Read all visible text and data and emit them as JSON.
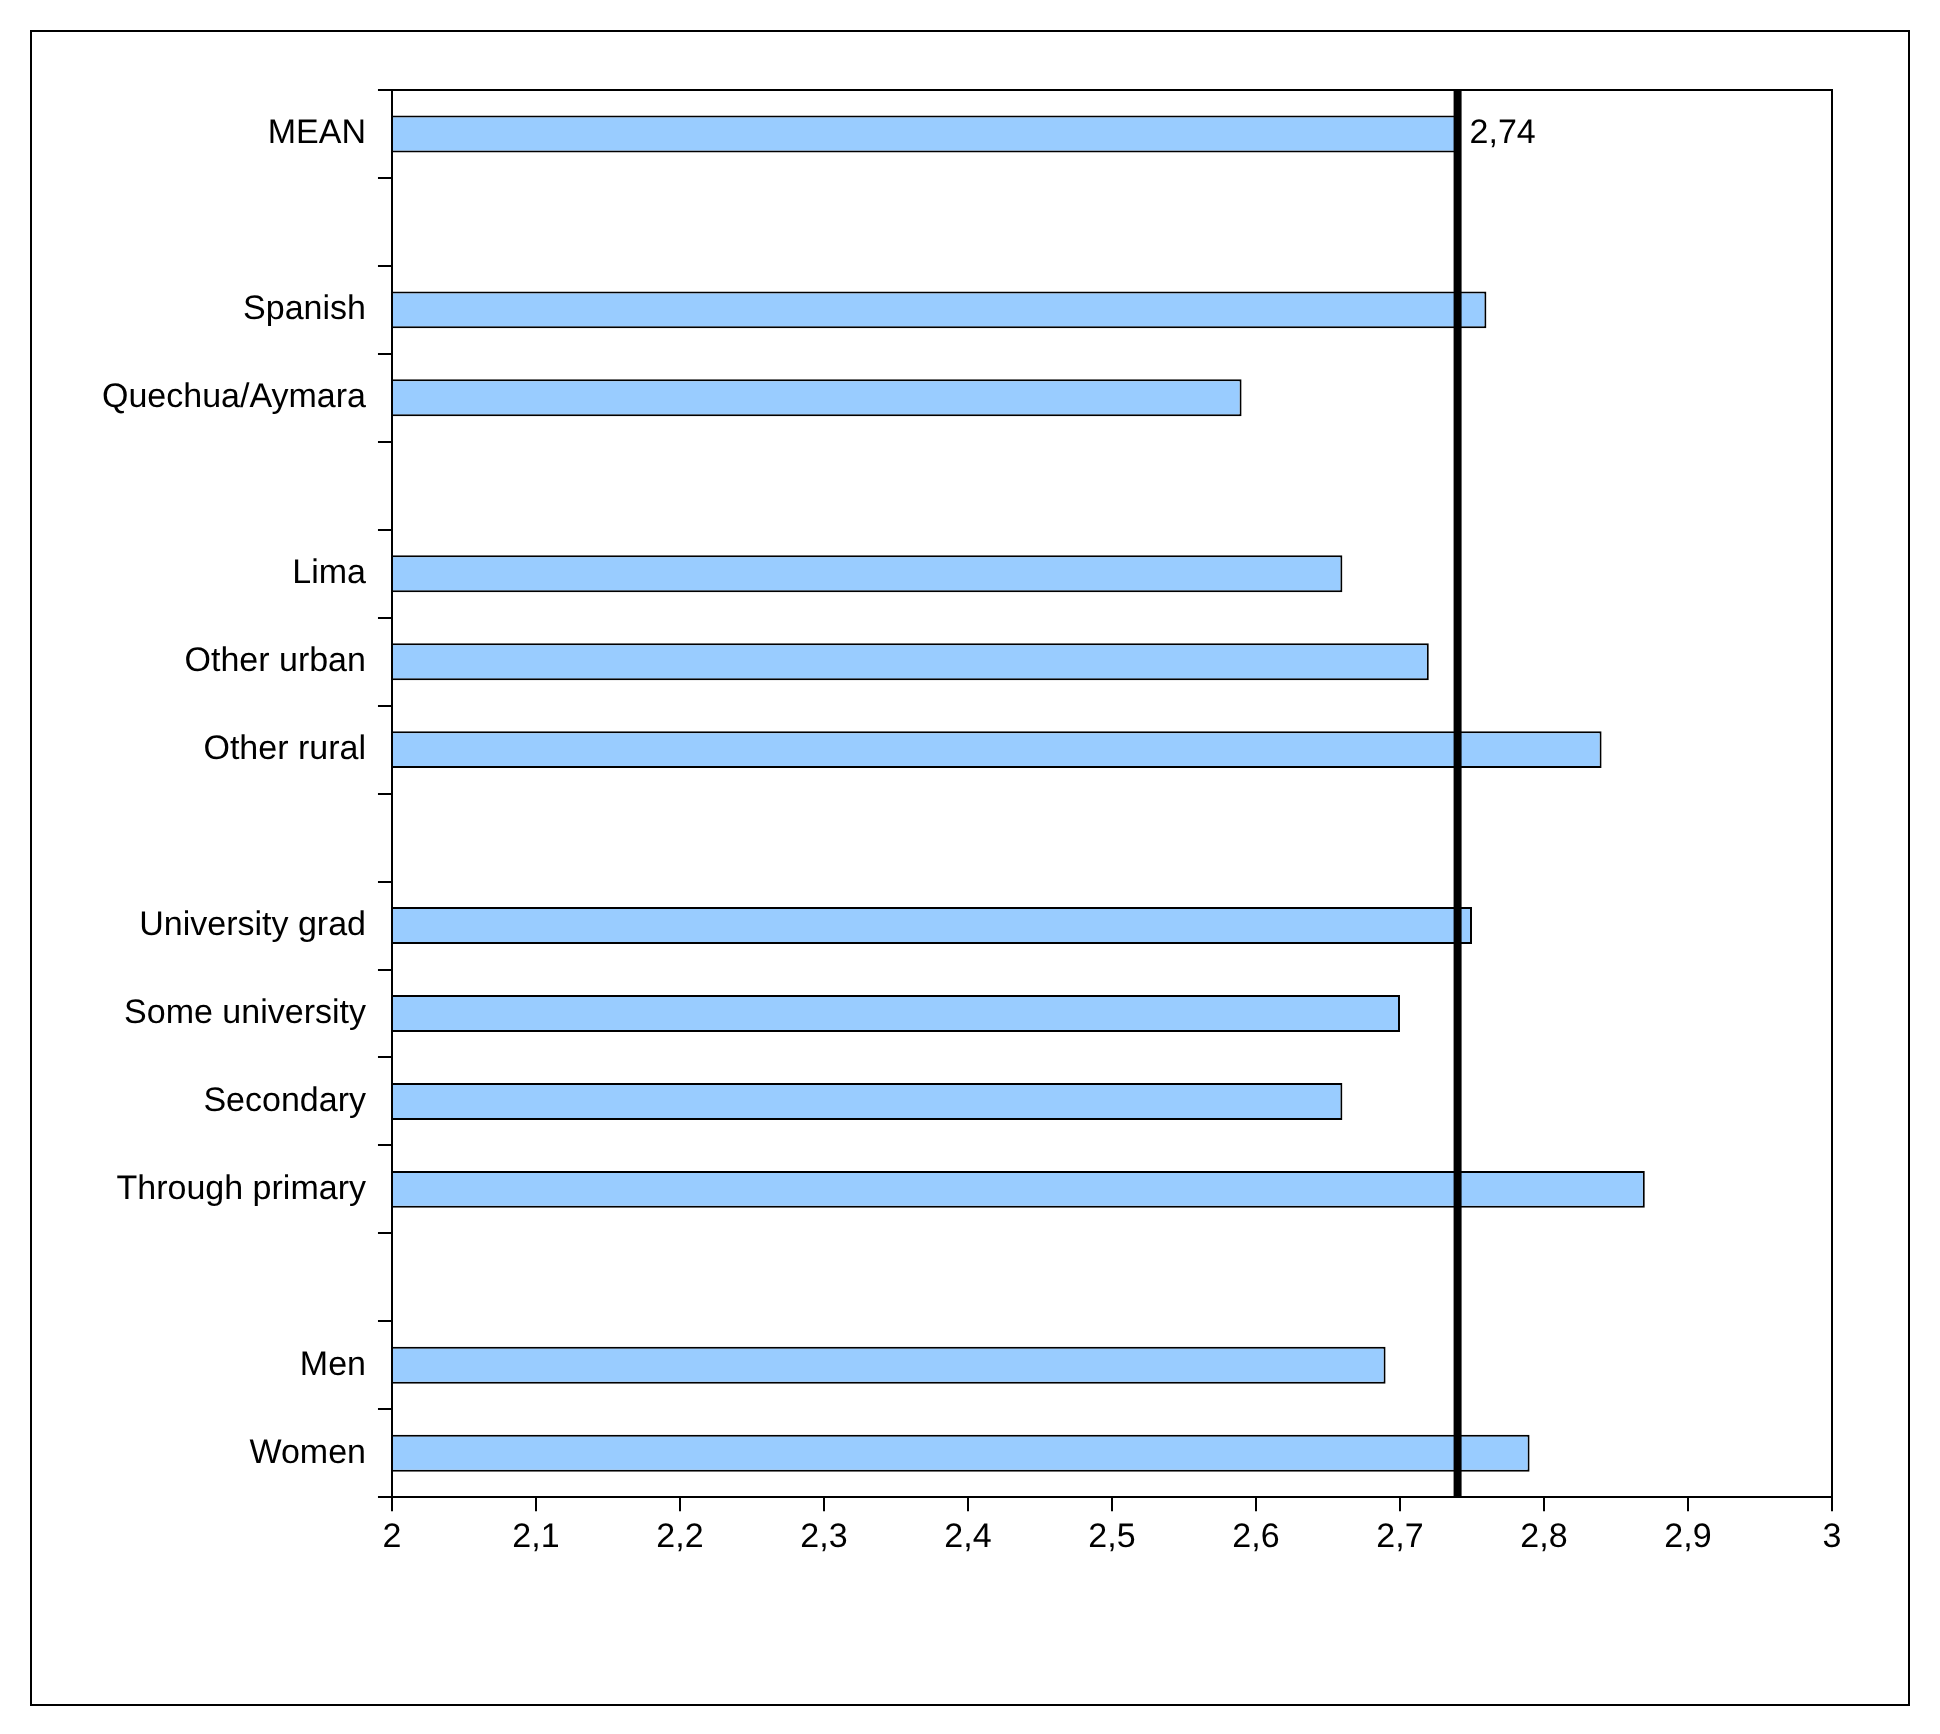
{
  "chart_data": {
    "type": "bar",
    "orientation": "horizontal",
    "categories": [
      "MEAN",
      null,
      "Spanish",
      "Quechua/Aymara",
      null,
      "Lima",
      "Other urban",
      "Other rural",
      null,
      "University grad",
      "Some university",
      "Secondary",
      "Through primary",
      null,
      "Men",
      "Women"
    ],
    "values": [
      2.74,
      null,
      2.76,
      2.59,
      null,
      2.66,
      2.72,
      2.84,
      null,
      2.75,
      2.7,
      2.66,
      2.87,
      null,
      2.69,
      2.79
    ],
    "color": "#99ccff",
    "xlim": [
      2,
      3
    ],
    "xticks": [
      {
        "value": 2,
        "label": "2"
      },
      {
        "value": 2.1,
        "label": "2,1"
      },
      {
        "value": 2.2,
        "label": "2,2"
      },
      {
        "value": 2.3,
        "label": "2,3"
      },
      {
        "value": 2.4,
        "label": "2,4"
      },
      {
        "value": 2.5,
        "label": "2,5"
      },
      {
        "value": 2.6,
        "label": "2,6"
      },
      {
        "value": 2.7,
        "label": "2,7"
      },
      {
        "value": 2.8,
        "label": "2,8"
      },
      {
        "value": 2.9,
        "label": "2,9"
      },
      {
        "value": 3,
        "label": "3"
      }
    ],
    "ref_lines": [
      {
        "axis": "x",
        "value": 2.74,
        "label": "2,74",
        "color": "#000000"
      }
    ],
    "grid": false,
    "legend": false
  }
}
